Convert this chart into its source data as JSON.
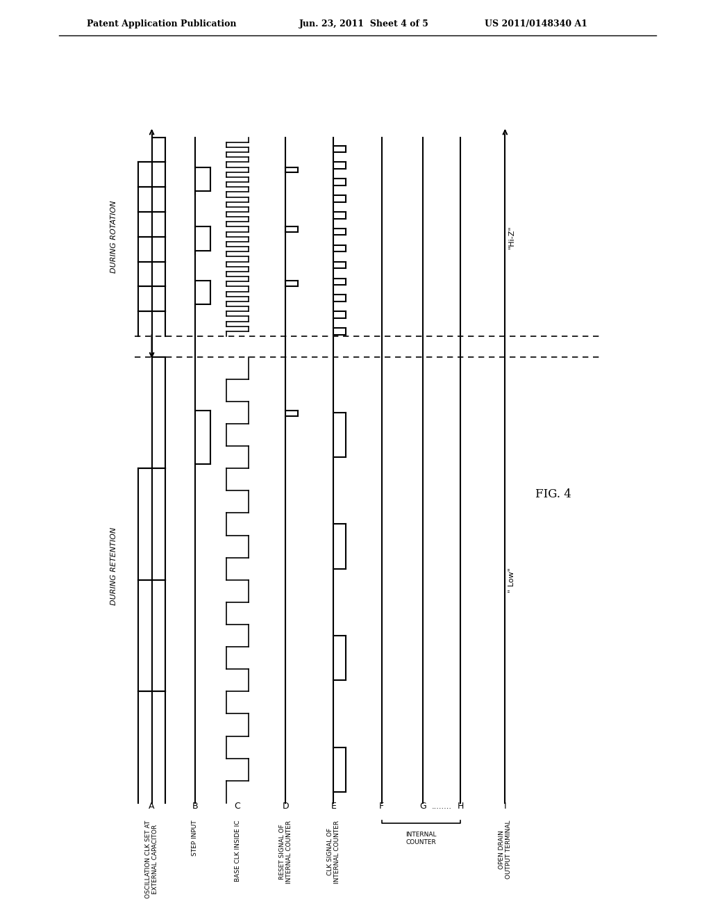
{
  "title_left": "Patent Application Publication",
  "title_center": "Jun. 23, 2011  Sheet 4 of 5",
  "title_right": "US 2011/0148340 A1",
  "fig_label": "FIG. 4",
  "during_rotation_label": "DURING ROTATION",
  "during_retention_label": "DURING RETENTION",
  "signal_labels": [
    "OSCILLATION CLK SET AT\nEXTERNAL CAPACITOR",
    "STEP INPUT",
    "BASE CLK INSIDE IC",
    "RESET SIGNAL OF\nINTERNAL COUNTER",
    "CLK SIGNAL OF\nINTERNAL COUNTER",
    "F",
    "G",
    "H",
    "OPEN DRAIN\nOUTPUT TERMINAL"
  ],
  "signal_letters": [
    "A",
    "B",
    "C",
    "D",
    "E",
    "F",
    "G",
    "H",
    "I"
  ],
  "internal_counter_label": "INTERNAL\nCOUNTER",
  "hi_z_label": "\"Hi-Z\"",
  "low_label": "\" Low\"",
  "background_color": "#ffffff",
  "line_color": "#000000",
  "dashed_color": "#555555"
}
